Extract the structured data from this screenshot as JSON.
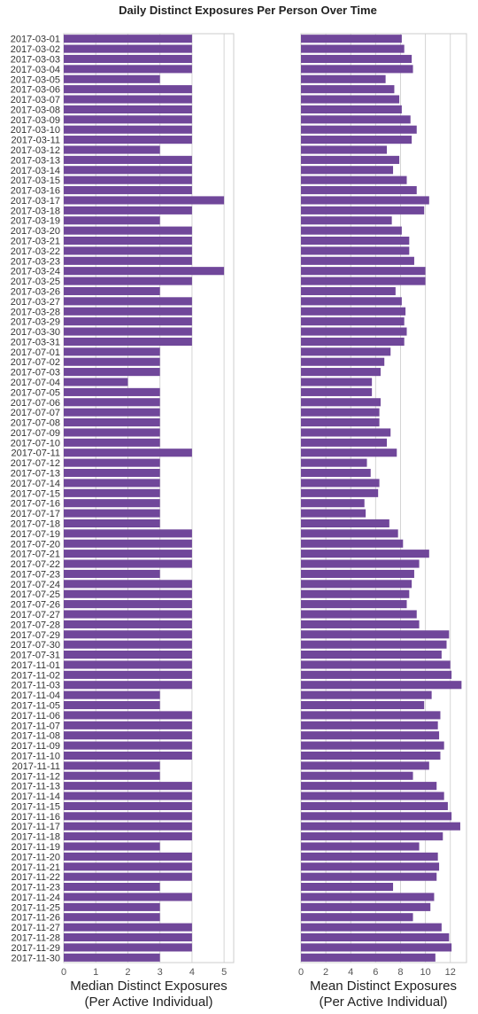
{
  "figure": {
    "title": "Daily Distinct Exposures Per Person Over Time",
    "bar_color": "#70479a"
  },
  "chart_data": [
    {
      "type": "bar",
      "orientation": "horizontal",
      "xlabel_line1": "Median Distinct Exposures",
      "xlabel_line2": "(Per Active Individual)",
      "xlim": [
        0,
        5.3
      ],
      "xticks": [
        0,
        1,
        2,
        3,
        4,
        5
      ],
      "grid": true,
      "categories": [
        "2017-03-01",
        "2017-03-02",
        "2017-03-03",
        "2017-03-04",
        "2017-03-05",
        "2017-03-06",
        "2017-03-07",
        "2017-03-08",
        "2017-03-09",
        "2017-03-10",
        "2017-03-11",
        "2017-03-12",
        "2017-03-13",
        "2017-03-14",
        "2017-03-15",
        "2017-03-16",
        "2017-03-17",
        "2017-03-18",
        "2017-03-19",
        "2017-03-20",
        "2017-03-21",
        "2017-03-22",
        "2017-03-23",
        "2017-03-24",
        "2017-03-25",
        "2017-03-26",
        "2017-03-27",
        "2017-03-28",
        "2017-03-29",
        "2017-03-30",
        "2017-03-31",
        "2017-07-01",
        "2017-07-02",
        "2017-07-03",
        "2017-07-04",
        "2017-07-05",
        "2017-07-06",
        "2017-07-07",
        "2017-07-08",
        "2017-07-09",
        "2017-07-10",
        "2017-07-11",
        "2017-07-12",
        "2017-07-13",
        "2017-07-14",
        "2017-07-15",
        "2017-07-16",
        "2017-07-17",
        "2017-07-18",
        "2017-07-19",
        "2017-07-20",
        "2017-07-21",
        "2017-07-22",
        "2017-07-23",
        "2017-07-24",
        "2017-07-25",
        "2017-07-26",
        "2017-07-27",
        "2017-07-28",
        "2017-07-29",
        "2017-07-30",
        "2017-07-31",
        "2017-11-01",
        "2017-11-02",
        "2017-11-03",
        "2017-11-04",
        "2017-11-05",
        "2017-11-06",
        "2017-11-07",
        "2017-11-08",
        "2017-11-09",
        "2017-11-10",
        "2017-11-11",
        "2017-11-12",
        "2017-11-13",
        "2017-11-14",
        "2017-11-15",
        "2017-11-16",
        "2017-11-17",
        "2017-11-18",
        "2017-11-19",
        "2017-11-20",
        "2017-11-21",
        "2017-11-22",
        "2017-11-23",
        "2017-11-24",
        "2017-11-25",
        "2017-11-26",
        "2017-11-27",
        "2017-11-28",
        "2017-11-29",
        "2017-11-30"
      ],
      "values": [
        4,
        4,
        4,
        4,
        3,
        4,
        4,
        4,
        4,
        4,
        4,
        3,
        4,
        4,
        4,
        4,
        5,
        4,
        3,
        4,
        4,
        4,
        4,
        5,
        4,
        3,
        4,
        4,
        4,
        4,
        4,
        3,
        3,
        3,
        2,
        3,
        3,
        3,
        3,
        3,
        3,
        4,
        3,
        3,
        3,
        3,
        3,
        3,
        3,
        4,
        4,
        4,
        4,
        3,
        4,
        4,
        4,
        4,
        4,
        4,
        4,
        4,
        4,
        4,
        4,
        3,
        3,
        4,
        4,
        4,
        4,
        4,
        3,
        3,
        4,
        4,
        4,
        4,
        4,
        4,
        3,
        4,
        4,
        4,
        3,
        4,
        3,
        3,
        4,
        4,
        4,
        3
      ]
    },
    {
      "type": "bar",
      "orientation": "horizontal",
      "xlabel_line1": "Mean Distinct Exposures",
      "xlabel_line2": "(Per Active Individual)",
      "xlim": [
        0,
        13.3
      ],
      "xticks": [
        0,
        2,
        4,
        6,
        8,
        10,
        12
      ],
      "grid": true,
      "categories_shared_with_first_panel": true,
      "values": [
        8.1,
        8.3,
        8.9,
        9.0,
        6.8,
        7.5,
        7.9,
        8.1,
        8.8,
        9.3,
        8.9,
        6.9,
        7.9,
        7.4,
        8.5,
        9.3,
        10.3,
        9.9,
        7.3,
        8.1,
        8.7,
        8.7,
        9.1,
        10.0,
        10.0,
        7.6,
        8.1,
        8.4,
        8.3,
        8.5,
        8.3,
        7.2,
        6.7,
        6.4,
        5.7,
        5.7,
        6.4,
        6.3,
        6.3,
        7.2,
        6.9,
        7.7,
        5.3,
        5.6,
        6.3,
        6.2,
        5.1,
        5.2,
        7.1,
        7.8,
        8.2,
        10.3,
        9.5,
        9.1,
        8.9,
        8.7,
        8.5,
        9.3,
        9.5,
        11.9,
        11.7,
        11.3,
        12.0,
        12.1,
        12.9,
        10.5,
        9.9,
        11.2,
        11.0,
        11.1,
        11.5,
        11.2,
        10.3,
        9.0,
        10.9,
        11.5,
        11.8,
        12.1,
        12.8,
        11.4,
        9.5,
        11.0,
        11.1,
        10.9,
        7.4,
        10.7,
        10.4,
        9.0,
        11.3,
        11.9,
        12.1,
        10.8
      ]
    }
  ]
}
